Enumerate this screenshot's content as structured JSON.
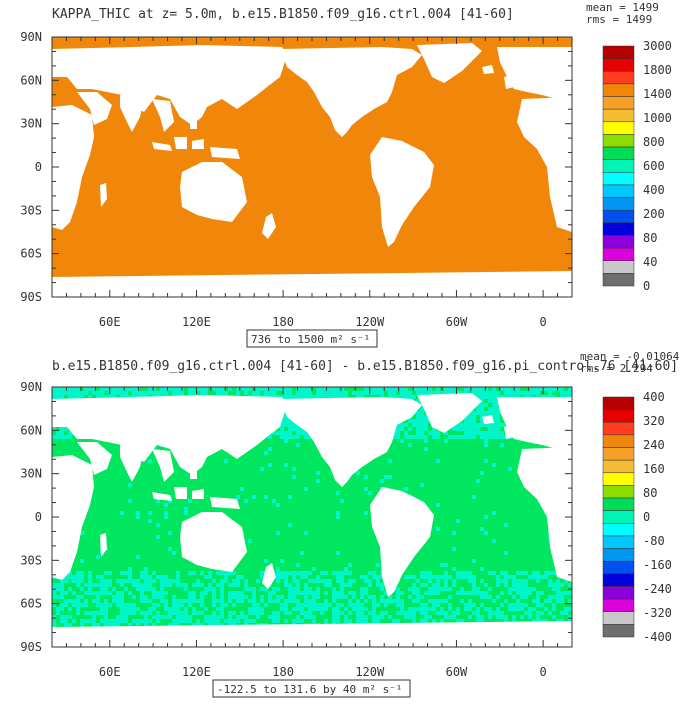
{
  "colors": {
    "ocean_top": "#f0870a",
    "land": "#ffffff",
    "frame": "#333333"
  },
  "chart_data": [
    {
      "type": "heatmap",
      "title": "KAPPA_THIC at z=   5.0m, b.e15.B1850.f09_g16.ctrl.004 [41-60]",
      "stats": [
        "mean = 1499",
        "rms = 1499"
      ],
      "range_label": "736 to 1500 m² s⁻¹",
      "xticks": [
        "60E",
        "120E",
        "180",
        "120W",
        "60W",
        "0"
      ],
      "yticks": [
        "90N",
        "60N",
        "30N",
        "0",
        "30S",
        "60S",
        "90S"
      ],
      "xlim": [
        20,
        380
      ],
      "ylim": [
        -90,
        90
      ],
      "ocean_value": 1500,
      "colorbar_labels": [
        "3000",
        "1800",
        "1400",
        "1000",
        "800",
        "600",
        "400",
        "200",
        "80",
        "40",
        "0"
      ],
      "colorbar_colors": [
        "#b40000",
        "#e60000",
        "#ff3c1e",
        "#f0870a",
        "#f5a028",
        "#f5be32",
        "#ffff00",
        "#8cdc00",
        "#00dc5a",
        "#00f5b4",
        "#00ffff",
        "#00c8ff",
        "#0096f0",
        "#0050f0",
        "#0000dc",
        "#8c00dc",
        "#dc00dc",
        "#c8c8c8",
        "#6e6e6e"
      ]
    },
    {
      "type": "heatmap",
      "title": "b.e15.B1850.f09_g16.ctrl.004 [41-60] - b.e15.B1850.f09_g16.pi_control.76 [41-60]",
      "stats": [
        "mean = -0.01064",
        "rms = 2.294"
      ],
      "range_label": "-122.5 to 131.6 by 40 m² s⁻¹",
      "xticks": [
        "60E",
        "120E",
        "180",
        "120W",
        "60W",
        "0"
      ],
      "yticks": [
        "90N",
        "60N",
        "30N",
        "0",
        "30S",
        "60S",
        "90S"
      ],
      "xlim": [
        20,
        380
      ],
      "ylim": [
        -90,
        90
      ],
      "colorbar_labels": [
        "400",
        "320",
        "240",
        "160",
        "80",
        "0",
        "-80",
        "-160",
        "-240",
        "-320",
        "-400"
      ],
      "colorbar_colors": [
        "#b40000",
        "#e60000",
        "#ff3c1e",
        "#f0870a",
        "#f5a028",
        "#f5be32",
        "#ffff00",
        "#8cdc00",
        "#00dc5a",
        "#00f5b4",
        "#00ffff",
        "#00c8ff",
        "#0096f0",
        "#0050f0",
        "#0000dc",
        "#8c00dc",
        "#dc00dc",
        "#c8c8c8",
        "#6e6e6e"
      ]
    }
  ]
}
